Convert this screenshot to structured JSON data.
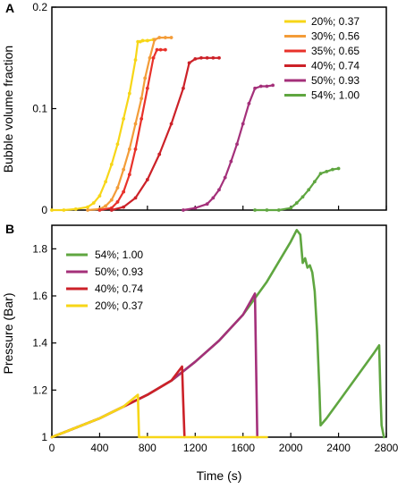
{
  "figure": {
    "panel_a_label": "A",
    "panel_b_label": "B",
    "xlabel": "Time (s)",
    "ylabel_a": "Bubble volume fraction",
    "ylabel_b": "Pressure (Bar)"
  },
  "chart_data": [
    {
      "panel": "A",
      "type": "line",
      "title": "",
      "ylabel": "Bubble volume fraction",
      "xlabel": "",
      "xlim": [
        0,
        2800
      ],
      "ylim": [
        0,
        0.2
      ],
      "x_ticks_labeled": [],
      "y_ticks": [
        0,
        0.1,
        0.2
      ],
      "y_tick_labels": [
        "0",
        "0.1",
        "0.2"
      ],
      "markers": true,
      "grid": false,
      "legend_position": "top-right",
      "series": [
        {
          "name": "20%; 0.37",
          "color": "#f7d617",
          "x": [
            0,
            100,
            200,
            300,
            350,
            400,
            450,
            500,
            550,
            600,
            650,
            700,
            720,
            740,
            760,
            800,
            850
          ],
          "y": [
            0,
            0,
            0.001,
            0.003,
            0.007,
            0.014,
            0.028,
            0.045,
            0.065,
            0.09,
            0.115,
            0.148,
            0.166,
            0.166,
            0.167,
            0.167,
            0.168
          ]
        },
        {
          "name": "30%; 0.56",
          "color": "#f39c38",
          "x": [
            300,
            400,
            450,
            500,
            550,
            600,
            650,
            700,
            750,
            780,
            820,
            860,
            900,
            950,
            1000
          ],
          "y": [
            0,
            0.001,
            0.004,
            0.01,
            0.022,
            0.04,
            0.06,
            0.085,
            0.11,
            0.13,
            0.15,
            0.168,
            0.17,
            0.17,
            0.17
          ]
        },
        {
          "name": "35%; 0.65",
          "color": "#e8312a",
          "x": [
            400,
            500,
            550,
            600,
            650,
            700,
            750,
            800,
            850,
            880,
            910,
            950
          ],
          "y": [
            0,
            0.002,
            0.008,
            0.018,
            0.035,
            0.06,
            0.09,
            0.12,
            0.15,
            0.158,
            0.158,
            0.158
          ]
        },
        {
          "name": "40%; 0.74",
          "color": "#cc2128",
          "x": [
            500,
            600,
            700,
            800,
            900,
            1000,
            1100,
            1150,
            1200,
            1250,
            1300,
            1350,
            1400
          ],
          "y": [
            0,
            0.003,
            0.012,
            0.03,
            0.055,
            0.085,
            0.12,
            0.145,
            0.149,
            0.15,
            0.15,
            0.15,
            0.15
          ]
        },
        {
          "name": "50%; 0.93",
          "color": "#a4307a",
          "x": [
            1100,
            1200,
            1300,
            1350,
            1400,
            1450,
            1500,
            1550,
            1600,
            1650,
            1700,
            1750,
            1800,
            1850
          ],
          "y": [
            0,
            0.002,
            0.006,
            0.012,
            0.02,
            0.032,
            0.048,
            0.065,
            0.085,
            0.105,
            0.12,
            0.122,
            0.122,
            0.123
          ]
        },
        {
          "name": "54%; 1.00",
          "color": "#5fa640",
          "x": [
            1700,
            1800,
            1900,
            2000,
            2050,
            2100,
            2150,
            2200,
            2250,
            2300,
            2350,
            2400
          ],
          "y": [
            0,
            0,
            0,
            0.002,
            0.007,
            0.013,
            0.02,
            0.028,
            0.036,
            0.038,
            0.04,
            0.041
          ]
        }
      ]
    },
    {
      "panel": "B",
      "type": "line",
      "title": "",
      "ylabel": "Pressure (Bar)",
      "xlabel": "Time (s)",
      "xlim": [
        0,
        2800
      ],
      "ylim": [
        1,
        1.9
      ],
      "x_ticks": [
        0,
        400,
        800,
        1200,
        1600,
        2000,
        2400,
        2800
      ],
      "x_tick_labels": [
        "0",
        "400",
        "800",
        "1200",
        "1600",
        "2000",
        "2400",
        "2800"
      ],
      "y_ticks": [
        1,
        1.2,
        1.4,
        1.6,
        1.8
      ],
      "y_tick_labels": [
        "1",
        "1.2",
        "1.4",
        "1.6",
        "1.8"
      ],
      "markers": false,
      "grid": false,
      "legend_position": "top-left",
      "series": [
        {
          "name": "54%; 1.00",
          "color": "#5fa640",
          "x": [
            0,
            200,
            400,
            600,
            800,
            1000,
            1200,
            1400,
            1600,
            1800,
            2000,
            2050,
            2080,
            2100,
            2120,
            2140,
            2160,
            2180,
            2200,
            2220,
            2240,
            2250,
            2300,
            2400,
            2500,
            2600,
            2700,
            2740,
            2750,
            2760,
            2780
          ],
          "y": [
            1,
            1.04,
            1.08,
            1.13,
            1.18,
            1.24,
            1.32,
            1.41,
            1.52,
            1.66,
            1.83,
            1.88,
            1.86,
            1.74,
            1.76,
            1.72,
            1.73,
            1.7,
            1.62,
            1.45,
            1.2,
            1.05,
            1.08,
            1.15,
            1.22,
            1.29,
            1.36,
            1.39,
            1.2,
            1.05,
            1.0
          ]
        },
        {
          "name": "50%; 0.93",
          "color": "#a4307a",
          "x": [
            0,
            200,
            400,
            600,
            800,
            1000,
            1200,
            1400,
            1600,
            1700,
            1710,
            1720
          ],
          "y": [
            1,
            1.04,
            1.08,
            1.13,
            1.18,
            1.24,
            1.32,
            1.41,
            1.52,
            1.61,
            1.3,
            1.0
          ]
        },
        {
          "name": "40%; 0.74",
          "color": "#cc2128",
          "x": [
            0,
            200,
            400,
            600,
            800,
            1000,
            1090,
            1100,
            1110
          ],
          "y": [
            1,
            1.04,
            1.08,
            1.13,
            1.18,
            1.24,
            1.3,
            1.15,
            1.0
          ]
        },
        {
          "name": "20%; 0.37",
          "color": "#f7d617",
          "x": [
            0,
            200,
            400,
            600,
            720,
            730,
            750,
            1000,
            1400,
            1800
          ],
          "y": [
            1,
            1.04,
            1.08,
            1.13,
            1.18,
            1.0,
            1.0,
            1.0,
            1.0,
            1.0
          ]
        }
      ]
    }
  ]
}
